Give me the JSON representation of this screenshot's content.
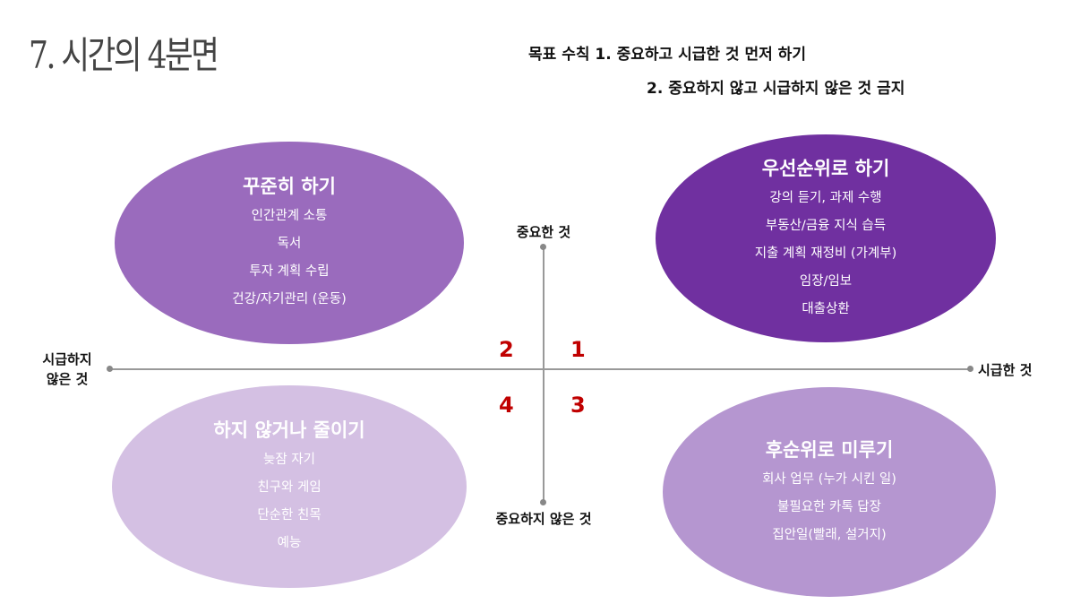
{
  "title": "7. 시간의 4분면",
  "goal": {
    "line1": "목표 수칙 1. 중요하고 시급한 것 먼저 하기",
    "line2": "2. 중요하지 않고 시급하지 않은 것 금지"
  },
  "axes": {
    "top": "중요한 것",
    "bottom": "중요하지 않은 것",
    "left_line1": "시급하지",
    "left_line2": "않은 것",
    "right": "시급한 것"
  },
  "quadrant_numbers": {
    "q1": "1",
    "q2": "2",
    "q3": "3",
    "q4": "4"
  },
  "colors": {
    "q1": "#7030a0",
    "q2": "#9a6bbd",
    "q3": "#b596d0",
    "q4": "#d4c0e3",
    "numbers": "#c00000"
  },
  "quadrants": {
    "q2": {
      "heading": "꾸준히 하기",
      "items": [
        "인간관계 소통",
        "독서",
        "투자 계획 수립",
        "건강/자기관리 (운동)"
      ]
    },
    "q1": {
      "heading": "우선순위로 하기",
      "items": [
        "강의 듣기, 과제 수행",
        "부동산/금융 지식 습득",
        "지출 계획 재정비 (가계부)",
        "임장/임보",
        "대출상환"
      ]
    },
    "q4": {
      "heading": "하지 않거나 줄이기",
      "items": [
        "늦잠 자기",
        "친구와 게임",
        "단순한 친목",
        "예능"
      ]
    },
    "q3": {
      "heading": "후순위로 미루기",
      "items": [
        "회사 업무 (누가 시킨 일)",
        "불필요한 카톡 답장",
        "집안일(빨래, 설거지)"
      ]
    }
  }
}
